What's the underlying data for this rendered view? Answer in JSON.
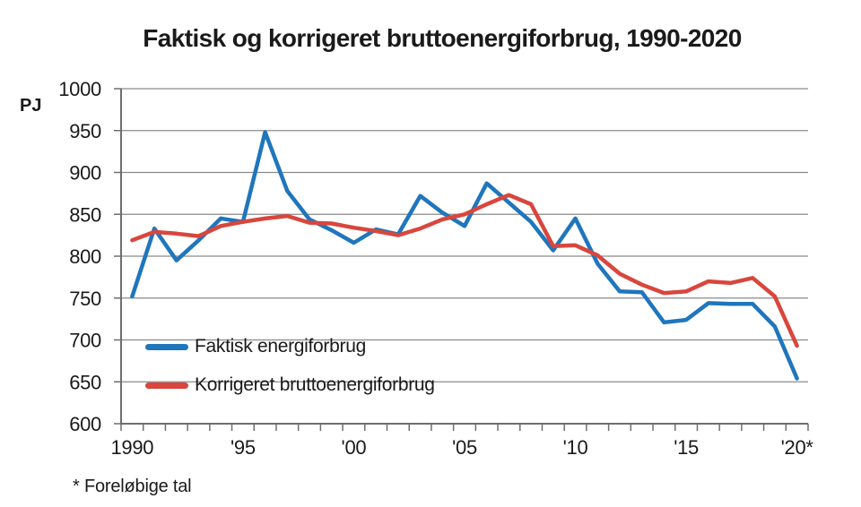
{
  "chart_data": {
    "type": "line",
    "title": "Faktisk og korrigeret bruttoenergiforbrug, 1990-2020",
    "ylabel": "PJ",
    "footnote": "* Foreløbige tal",
    "ylim": [
      600,
      1000
    ],
    "ytick_step": 50,
    "grid": "horizontal",
    "legend_position": "inside-bottom-left",
    "x": [
      1990,
      1991,
      1992,
      1993,
      1994,
      1995,
      1996,
      1997,
      1998,
      1999,
      2000,
      2001,
      2002,
      2003,
      2004,
      2005,
      2006,
      2007,
      2008,
      2009,
      2010,
      2011,
      2012,
      2013,
      2014,
      2015,
      2016,
      2017,
      2018,
      2019,
      2020
    ],
    "xticks": [
      {
        "x": 1990,
        "label": "1990"
      },
      {
        "x": 1995,
        "label": "'95"
      },
      {
        "x": 2000,
        "label": "'00"
      },
      {
        "x": 2005,
        "label": "'05"
      },
      {
        "x": 2010,
        "label": "'10"
      },
      {
        "x": 2015,
        "label": "'15"
      },
      {
        "x": 2020,
        "label": "'20*"
      }
    ],
    "series": [
      {
        "name": "Faktisk energiforbrug",
        "color": "#1F76BC",
        "values": [
          752,
          833,
          795,
          819,
          845,
          841,
          948,
          878,
          844,
          831,
          816,
          832,
          826,
          872,
          852,
          836,
          887,
          864,
          841,
          807,
          845,
          791,
          758,
          757,
          721,
          724,
          744,
          743,
          743,
          716,
          654
        ]
      },
      {
        "name": "Korrigeret bruttoenergiforbrug",
        "color": "#D8463D",
        "values": [
          819,
          829,
          827,
          824,
          836,
          841,
          845,
          848,
          840,
          839,
          834,
          830,
          825,
          833,
          844,
          850,
          862,
          873,
          862,
          812,
          813,
          801,
          779,
          766,
          756,
          758,
          770,
          768,
          774,
          752,
          693
        ]
      }
    ]
  }
}
